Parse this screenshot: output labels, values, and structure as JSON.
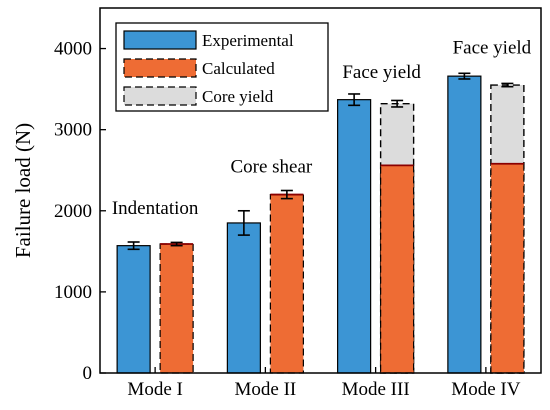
{
  "chart_data": {
    "type": "bar",
    "categories": [
      "Mode I",
      "Mode II",
      "Mode III",
      "Mode IV"
    ],
    "ylabel": "Failure load (N)",
    "ylim": [
      0,
      4500
    ],
    "yticks": [
      0,
      1000,
      2000,
      3000,
      4000
    ],
    "grid": false,
    "legend": {
      "placement": "top-left",
      "entries": [
        "Experimental",
        "Calculated",
        "Core yield"
      ]
    },
    "series": [
      {
        "name": "Experimental",
        "values": [
          1570,
          1850,
          3370,
          3660
        ],
        "error": [
          45,
          150,
          70,
          35
        ]
      },
      {
        "name": "Calculated",
        "values": [
          1590,
          2200,
          2560,
          2580
        ],
        "error": [
          20,
          50,
          0,
          0
        ]
      },
      {
        "name": "Core yield",
        "values": [
          0,
          0,
          3320,
          3550
        ],
        "error": [
          0,
          0,
          40,
          20
        ]
      }
    ],
    "annotations": [
      {
        "text": "Indentation",
        "category": "Mode I"
      },
      {
        "text": "Core shear",
        "category": "Mode II"
      },
      {
        "text": "Face yield",
        "category": "Mode III"
      },
      {
        "text": "Face yield",
        "category": "Mode IV"
      }
    ],
    "colors": {
      "experimental": "#3c95d4",
      "calculated": "#ee6c34",
      "core_yield": "#dcdcdc",
      "edge": "#000000",
      "cap_line": "#8b0000"
    }
  }
}
